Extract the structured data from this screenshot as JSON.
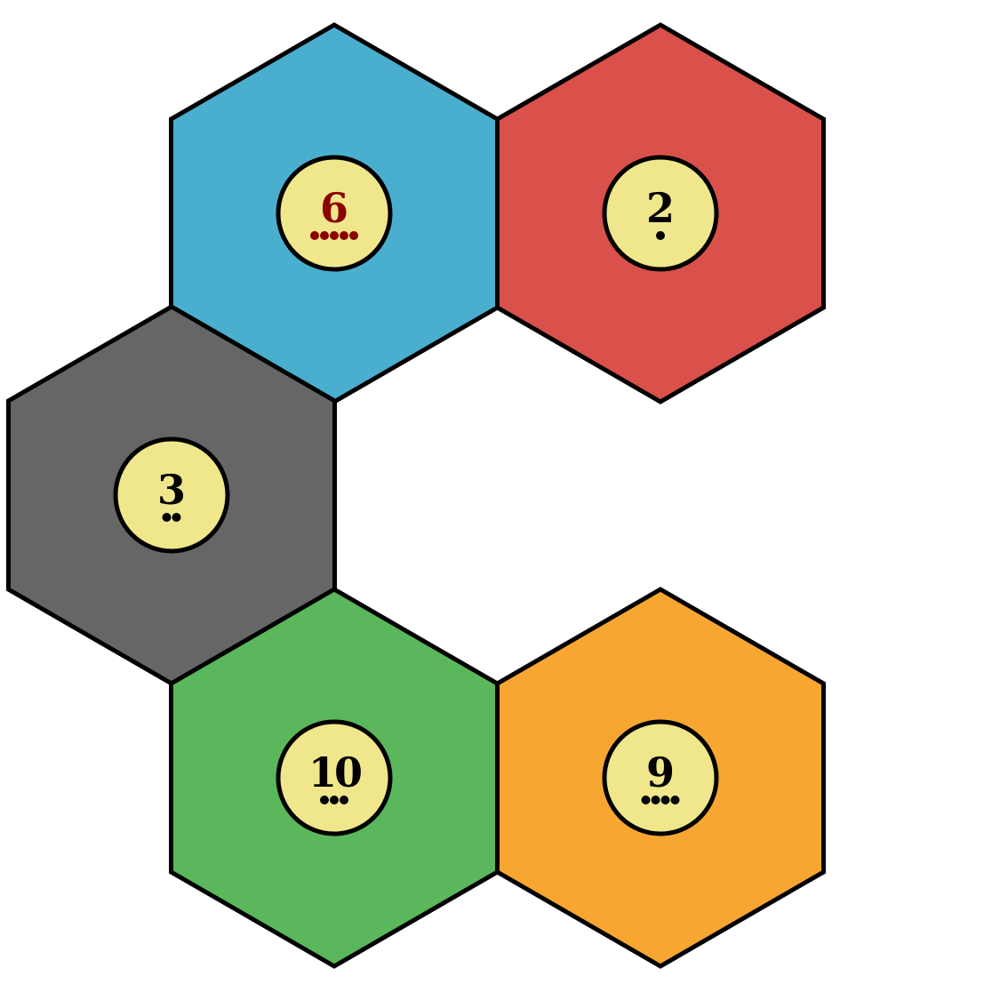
{
  "tiles": [
    {
      "id": "blue",
      "terrain_color": "#4AAFCF",
      "number": "6",
      "pips": 5,
      "number_color": "#8B0000"
    },
    {
      "id": "red",
      "terrain_color": "#DA504B",
      "number": "2",
      "pips": 1,
      "number_color": "#000000"
    },
    {
      "id": "gray",
      "terrain_color": "#666666",
      "number": "3",
      "pips": 2,
      "number_color": "#000000"
    },
    {
      "id": "green",
      "terrain_color": "#5BB75C",
      "number": "10",
      "pips": 3,
      "number_color": "#000000"
    },
    {
      "id": "orange",
      "terrain_color": "#F7A631",
      "number": "9",
      "pips": 4,
      "number_color": "#000000"
    }
  ],
  "token_color": "#F0E68C",
  "outline_color": "#000000"
}
